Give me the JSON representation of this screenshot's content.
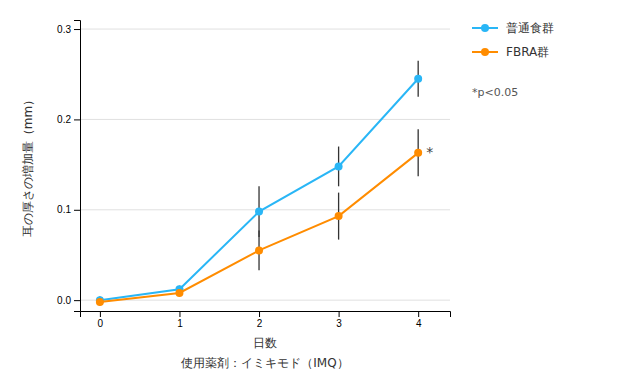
{
  "chart_data": {
    "type": "line",
    "subtitle": "使用薬剤：イミキモド（IMQ）",
    "x_label": "日数",
    "y_label": "耳の厚さの増加量（mm）",
    "x": [
      0,
      1,
      2,
      3,
      4
    ],
    "series": [
      {
        "name": "普通食群",
        "color": "#29B6F6",
        "marker": "circle",
        "line_style": "solid",
        "values": [
          0.0,
          0.012,
          0.098,
          0.148,
          0.245
        ],
        "errors": [
          0.004,
          0.004,
          0.028,
          0.022,
          0.02
        ]
      },
      {
        "name": "FBRA群",
        "color": "#FF8C00",
        "marker": "circle",
        "line_style": "solid",
        "values": [
          -0.002,
          0.008,
          0.055,
          0.093,
          0.163
        ],
        "errors": [
          0.004,
          0.004,
          0.022,
          0.026,
          0.026
        ]
      }
    ],
    "annotations": [
      {
        "text": "*"
      },
      {
        "text": "*p<0.05"
      }
    ],
    "xlim": [
      -0.25,
      4.4
    ],
    "xticks": [
      0,
      1,
      2,
      3,
      4
    ],
    "ylim": [
      -0.012,
      0.31
    ],
    "yticks": [
      {
        "value": 0.0,
        "label": "0.0"
      },
      0.1,
      0.2,
      0.3
    ],
    "grid": true,
    "legend": "right"
  }
}
